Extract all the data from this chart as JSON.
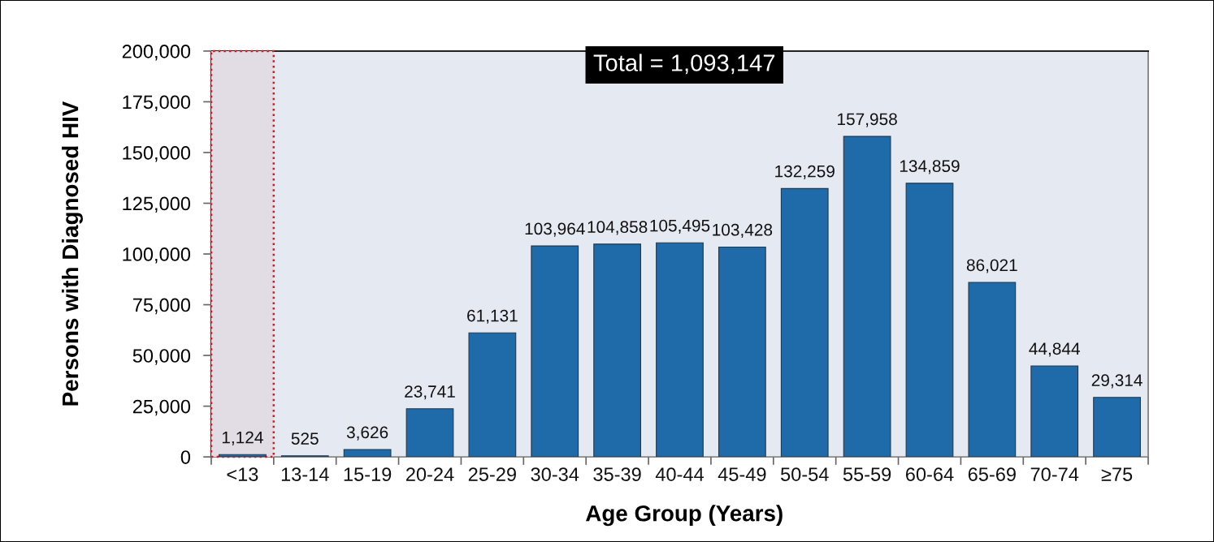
{
  "chart_data": {
    "type": "bar",
    "categories": [
      "<13",
      "13-14",
      "15-19",
      "20-24",
      "25-29",
      "30-34",
      "35-39",
      "40-44",
      "45-49",
      "50-54",
      "55-59",
      "60-64",
      "65-69",
      "70-74",
      "≥75"
    ],
    "values": [
      1124,
      525,
      3626,
      23741,
      61131,
      103964,
      104858,
      105495,
      103428,
      132259,
      157958,
      134859,
      86021,
      44844,
      29314
    ],
    "value_labels": [
      "1,124",
      "525",
      "3,626",
      "23,741",
      "61,131",
      "103,964",
      "104,858",
      "105,495",
      "103,428",
      "132,259",
      "157,958",
      "134,859",
      "86,021",
      "44,844",
      "29,314"
    ],
    "color": "#1f6aa8",
    "xlabel": "Age Group (Years)",
    "ylabel": "Persons with Diagnosed HIV",
    "ylim": [
      0,
      200000
    ],
    "yticks": [
      0,
      {
        "value": 25000,
        "label": "25,000"
      },
      {
        "value": 50000,
        "label": "50,000"
      },
      {
        "value": 75000,
        "label": "75,000"
      },
      {
        "value": 100000,
        "label": "100,000"
      },
      {
        "value": 125000,
        "label": "125,000"
      },
      {
        "value": 150000,
        "label": "150,000"
      },
      {
        "value": 175000,
        "label": "175,000"
      },
      {
        "value": 200000,
        "label": "200,000"
      }
    ],
    "annotations": [
      "Total = 1,093,147"
    ],
    "bands": [
      {
        "axis": "x",
        "from": "<13",
        "to": "<13",
        "color": "#e2dde5"
      }
    ],
    "grid": false
  }
}
